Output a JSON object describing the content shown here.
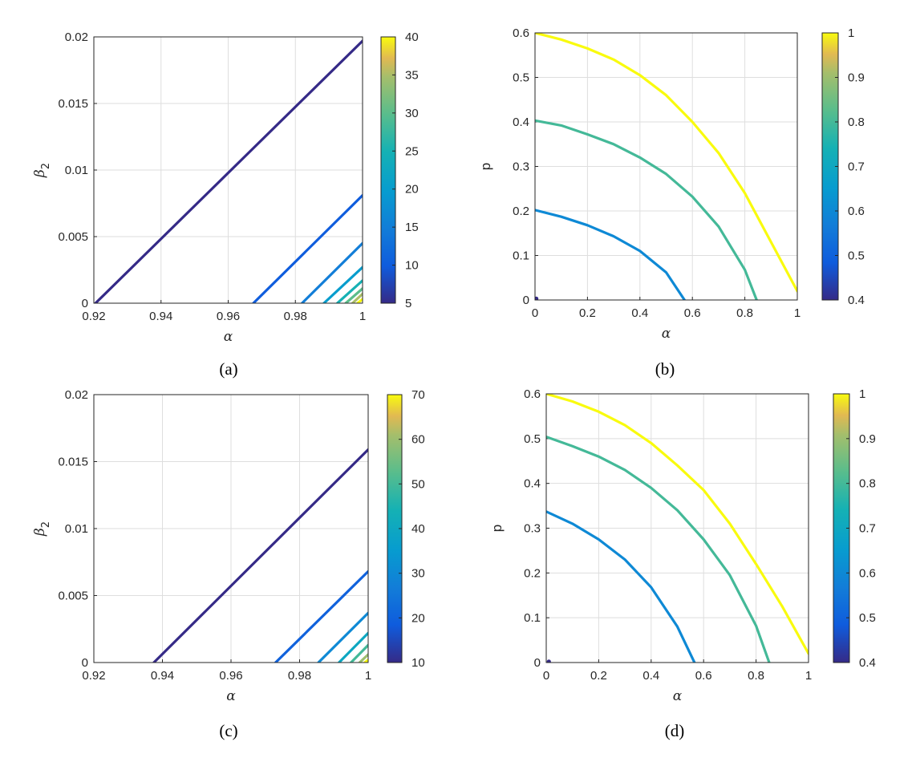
{
  "chart_data": [
    {
      "type": "contour",
      "caption": "(a)",
      "xlabel": "α",
      "ylabel": "β",
      "ylabel_subscript": "2",
      "xlim": [
        0.92,
        1.0
      ],
      "ylim": [
        0,
        0.02
      ],
      "xticks": [
        "0.92",
        "0.94",
        "0.96",
        "0.98",
        "1"
      ],
      "yticks": [
        "0",
        "0.005",
        "0.01",
        "0.015",
        "0.02"
      ],
      "grid": true,
      "colorbar": {
        "range": [
          5,
          40
        ],
        "ticks": [
          "5",
          "10",
          "15",
          "20",
          "25",
          "30",
          "35",
          "40"
        ]
      },
      "contours": [
        {
          "level": 5,
          "x0": 0.9205,
          "x1": 1.0,
          "y_at_x1": 0.0197
        },
        {
          "level": 10,
          "x0": 0.9675,
          "x1": 1.0,
          "y_at_x1": 0.0081
        },
        {
          "level": 15,
          "x0": 0.982,
          "x1": 1.0,
          "y_at_x1": 0.0045
        },
        {
          "level": 20,
          "x0": 0.9885,
          "x1": 1.0,
          "y_at_x1": 0.0027
        },
        {
          "level": 25,
          "x0": 0.9925,
          "x1": 1.0,
          "y_at_x1": 0.0017
        },
        {
          "level": 30,
          "x0": 0.995,
          "x1": 1.0,
          "y_at_x1": 0.0011
        },
        {
          "level": 35,
          "x0": 0.997,
          "x1": 1.0,
          "y_at_x1": 0.0007
        },
        {
          "level": 40,
          "x0": 0.9985,
          "x1": 1.0,
          "y_at_x1": 0.0003
        }
      ]
    },
    {
      "type": "contour",
      "caption": "(b)",
      "xlabel": "α",
      "ylabel": "p",
      "xlim": [
        0,
        1
      ],
      "ylim": [
        0,
        0.6
      ],
      "xticks": [
        "0",
        "0.2",
        "0.4",
        "0.6",
        "0.8",
        "1"
      ],
      "yticks": [
        "0",
        "0.1",
        "0.2",
        "0.3",
        "0.4",
        "0.5",
        "0.6"
      ],
      "grid": true,
      "colorbar": {
        "range": [
          0.4,
          1
        ],
        "ticks": [
          "0.4",
          "0.5",
          "0.6",
          "0.7",
          "0.8",
          "0.9",
          "1"
        ]
      },
      "contours": [
        {
          "level": 0.6,
          "points": [
            [
              0,
              0.202
            ],
            [
              0.1,
              0.187
            ],
            [
              0.2,
              0.168
            ],
            [
              0.3,
              0.143
            ],
            [
              0.4,
              0.11
            ],
            [
              0.5,
              0.062
            ],
            [
              0.57,
              0
            ]
          ]
        },
        {
          "level": 0.8,
          "points": [
            [
              0,
              0.403
            ],
            [
              0.1,
              0.392
            ],
            [
              0.2,
              0.372
            ],
            [
              0.3,
              0.35
            ],
            [
              0.4,
              0.32
            ],
            [
              0.5,
              0.283
            ],
            [
              0.6,
              0.232
            ],
            [
              0.7,
              0.165
            ],
            [
              0.8,
              0.068
            ],
            [
              0.845,
              0
            ]
          ]
        },
        {
          "level": 1.0,
          "points": [
            [
              0,
              0.6
            ],
            [
              0.1,
              0.585
            ],
            [
              0.2,
              0.565
            ],
            [
              0.3,
              0.54
            ],
            [
              0.4,
              0.505
            ],
            [
              0.5,
              0.46
            ],
            [
              0.6,
              0.4
            ],
            [
              0.7,
              0.33
            ],
            [
              0.8,
              0.24
            ],
            [
              0.9,
              0.13
            ],
            [
              1.0,
              0.02
            ]
          ]
        }
      ],
      "marker": {
        "level": 0.4,
        "x": 0.005,
        "y": 0.003
      }
    },
    {
      "type": "contour",
      "caption": "(c)",
      "xlabel": "α",
      "ylabel": "β",
      "ylabel_subscript": "2",
      "xlim": [
        0.92,
        1.0
      ],
      "ylim": [
        0,
        0.02
      ],
      "xticks": [
        "0.92",
        "0.94",
        "0.96",
        "0.98",
        "1"
      ],
      "yticks": [
        "0",
        "0.005",
        "0.01",
        "0.015",
        "0.02"
      ],
      "grid": true,
      "colorbar": {
        "range": [
          10,
          70
        ],
        "ticks": [
          "10",
          "20",
          "30",
          "40",
          "50",
          "60",
          "70"
        ]
      },
      "contours": [
        {
          "level": 10,
          "x0": 0.9375,
          "x1": 1.0,
          "y_at_x1": 0.0159
        },
        {
          "level": 20,
          "x0": 0.973,
          "x1": 1.0,
          "y_at_x1": 0.0068
        },
        {
          "level": 30,
          "x0": 0.9855,
          "x1": 1.0,
          "y_at_x1": 0.0037
        },
        {
          "level": 40,
          "x0": 0.9915,
          "x1": 1.0,
          "y_at_x1": 0.0022
        },
        {
          "level": 50,
          "x0": 0.995,
          "x1": 1.0,
          "y_at_x1": 0.0013
        },
        {
          "level": 60,
          "x0": 0.9975,
          "x1": 1.0,
          "y_at_x1": 0.0006
        },
        {
          "level": 70,
          "x0": 0.999,
          "x1": 1.0,
          "y_at_x1": 0.0002
        }
      ]
    },
    {
      "type": "contour",
      "caption": "(d)",
      "xlabel": "α",
      "ylabel": "p",
      "xlim": [
        0,
        1
      ],
      "ylim": [
        0,
        0.6
      ],
      "xticks": [
        "0",
        "0.2",
        "0.4",
        "0.6",
        "0.8",
        "1"
      ],
      "yticks": [
        "0",
        "0.1",
        "0.2",
        "0.3",
        "0.4",
        "0.5",
        "0.6"
      ],
      "grid": true,
      "colorbar": {
        "range": [
          0.4,
          1
        ],
        "ticks": [
          "0.4",
          "0.5",
          "0.6",
          "0.7",
          "0.8",
          "0.9",
          "1"
        ]
      },
      "contours": [
        {
          "level": 0.6,
          "points": [
            [
              0,
              0.337
            ],
            [
              0.1,
              0.31
            ],
            [
              0.2,
              0.275
            ],
            [
              0.3,
              0.23
            ],
            [
              0.4,
              0.168
            ],
            [
              0.5,
              0.08
            ],
            [
              0.565,
              0
            ]
          ]
        },
        {
          "level": 0.8,
          "points": [
            [
              0,
              0.504
            ],
            [
              0.1,
              0.483
            ],
            [
              0.2,
              0.46
            ],
            [
              0.3,
              0.43
            ],
            [
              0.4,
              0.39
            ],
            [
              0.5,
              0.34
            ],
            [
              0.6,
              0.275
            ],
            [
              0.7,
              0.195
            ],
            [
              0.8,
              0.082
            ],
            [
              0.85,
              0
            ]
          ]
        },
        {
          "level": 1.0,
          "points": [
            [
              0,
              0.6
            ],
            [
              0.1,
              0.583
            ],
            [
              0.2,
              0.56
            ],
            [
              0.3,
              0.53
            ],
            [
              0.4,
              0.49
            ],
            [
              0.5,
              0.44
            ],
            [
              0.6,
              0.385
            ],
            [
              0.7,
              0.31
            ],
            [
              0.8,
              0.22
            ],
            [
              0.9,
              0.125
            ],
            [
              1.0,
              0.02
            ]
          ]
        }
      ],
      "marker": {
        "level": 0.4,
        "x": 0.01,
        "y": 0.002
      }
    }
  ]
}
